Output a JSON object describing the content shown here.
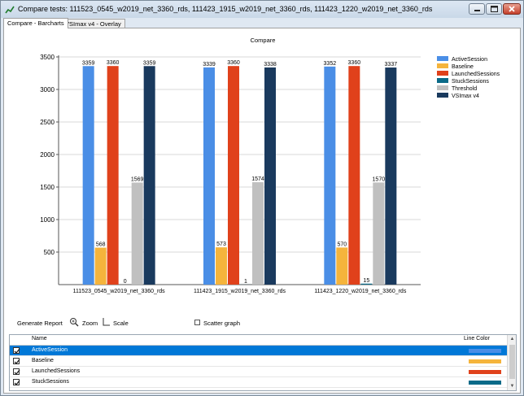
{
  "window": {
    "title": "Compare tests: 111523_0545_w2019_net_3360_rds, 111423_1915_w2019_net_3360_rds, 111423_1220_w2019_net_3360_rds"
  },
  "tabs": [
    {
      "label": "Compare - Barcharts",
      "active": true
    },
    {
      "label": "VSImax v4 - Overlay",
      "active": false
    }
  ],
  "chart_data": {
    "type": "bar",
    "title": "Compare",
    "categories": [
      "111523_0545_w2019_net_3360_rds",
      "111423_1915_w2019_net_3360_rds",
      "111423_1220_w2019_net_3360_rds"
    ],
    "series": [
      {
        "name": "ActiveSession",
        "color": "#4a8ee6",
        "values": [
          3359,
          3339,
          3352
        ]
      },
      {
        "name": "Baseline",
        "color": "#f5b43c",
        "values": [
          568,
          573,
          570
        ]
      },
      {
        "name": "LaunchedSessions",
        "color": "#e0411b",
        "values": [
          3360,
          3360,
          3360
        ]
      },
      {
        "name": "StuckSessions",
        "color": "#0a6a88",
        "values": [
          0,
          1,
          15
        ]
      },
      {
        "name": "Threshold",
        "color": "#c0c0c0",
        "values": [
          1569,
          1574,
          1570
        ]
      },
      {
        "name": "VSImax v4",
        "color": "#1a3a5e",
        "values": [
          3359,
          3338,
          3337
        ]
      }
    ],
    "yticks": [
      "3500",
      "3000",
      "2500",
      "2000",
      "1500",
      "1000",
      "500"
    ],
    "ylim": [
      0,
      3500
    ],
    "legend_position": "top-right",
    "grid": true
  },
  "controls": {
    "generate_report": "Generate Report",
    "zoom": "Zoom",
    "scale": "Scale",
    "scatter_graph": "Scatter graph"
  },
  "table": {
    "headers": {
      "name": "Name",
      "line_color": "Line Color"
    },
    "rows": [
      {
        "name": "ActiveSession",
        "checked": true,
        "selected": true,
        "color": "#4a8ee6"
      },
      {
        "name": "Baseline",
        "checked": true,
        "selected": false,
        "color": "#f5b43c"
      },
      {
        "name": "LaunchedSessions",
        "checked": true,
        "selected": false,
        "color": "#e0411b"
      },
      {
        "name": "StuckSessions",
        "checked": true,
        "selected": false,
        "color": "#0a6a88"
      }
    ]
  }
}
